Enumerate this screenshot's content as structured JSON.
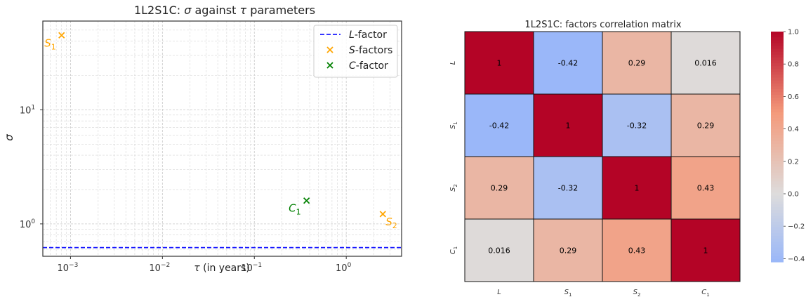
{
  "chart_data": [
    {
      "type": "scatter",
      "title_prefix": "1L2S1C: ",
      "title_sigma": "σ",
      "title_middle": " against ",
      "title_tau": "τ",
      "title_suffix": " parameters",
      "xlabel_tau": "τ",
      "xlabel_rest": " (in years)",
      "ylabel": "σ",
      "xscale": "log",
      "yscale": "log",
      "xlim": [
        0.0005,
        4
      ],
      "ylim": [
        0.52,
        60
      ],
      "grid": true,
      "legend_placement": "top-right",
      "x_ticks": [
        {
          "value": 0.001,
          "base": "10",
          "exp": "−3"
        },
        {
          "value": 0.01,
          "base": "10",
          "exp": "−2"
        },
        {
          "value": 0.1,
          "base": "10",
          "exp": "−1"
        },
        {
          "value": 1,
          "base": "10",
          "exp": "0"
        }
      ],
      "y_ticks": [
        {
          "value": 1,
          "base": "10",
          "exp": "0"
        },
        {
          "value": 10,
          "base": "10",
          "exp": "1"
        }
      ],
      "series": [
        {
          "name_italic": "L",
          "name_rest": "-factor",
          "kind": "hline",
          "y": 0.62,
          "color": "#1a1aff"
        },
        {
          "name_italic": "S",
          "name_rest": "-factors",
          "kind": "scatter",
          "color": "#ffa500",
          "points": [
            {
              "x": 0.0008,
              "y": 45,
              "label_main": "S",
              "label_sub": "1",
              "label_side": "left"
            },
            {
              "x": 2.5,
              "y": 1.22,
              "label_main": "S",
              "label_sub": "2",
              "label_side": "right"
            }
          ]
        },
        {
          "name_italic": "C",
          "name_rest": "-factor",
          "kind": "scatter",
          "color": "#008000",
          "points": [
            {
              "x": 0.37,
              "y": 1.6,
              "label_main": "C",
              "label_sub": "1",
              "label_side": "left"
            }
          ]
        }
      ]
    },
    {
      "type": "heatmap",
      "title": "1L2S1C: factors correlation matrix",
      "labels": [
        {
          "main": "L",
          "sub": ""
        },
        {
          "main": "S",
          "sub": "1"
        },
        {
          "main": "S",
          "sub": "2"
        },
        {
          "main": "C",
          "sub": "1"
        }
      ],
      "values": [
        [
          1,
          -0.42,
          0.29,
          0.016
        ],
        [
          -0.42,
          1,
          -0.32,
          0.29
        ],
        [
          0.29,
          -0.32,
          1,
          0.43
        ],
        [
          0.016,
          0.29,
          0.43,
          1
        ]
      ],
      "cell_text": [
        [
          "1",
          "-0.42",
          "0.29",
          "0.016"
        ],
        [
          "-0.42",
          "1",
          "-0.32",
          "0.29"
        ],
        [
          "0.29",
          "-0.32",
          "1",
          "0.43"
        ],
        [
          "0.016",
          "0.29",
          "0.43",
          "1"
        ]
      ],
      "colormap": "coolwarm",
      "vmin": -0.42,
      "vmax": 1,
      "center": 0,
      "colorbar_ticks": [
        {
          "value": 1.0,
          "label": "1.0"
        },
        {
          "value": 0.8,
          "label": "0.8"
        },
        {
          "value": 0.6,
          "label": "0.6"
        },
        {
          "value": 0.4,
          "label": "0.4"
        },
        {
          "value": 0.2,
          "label": "0.2"
        },
        {
          "value": 0.0,
          "label": "0.0"
        },
        {
          "value": -0.2,
          "label": "−0.2"
        },
        {
          "value": -0.4,
          "label": "−0.4"
        }
      ]
    }
  ]
}
